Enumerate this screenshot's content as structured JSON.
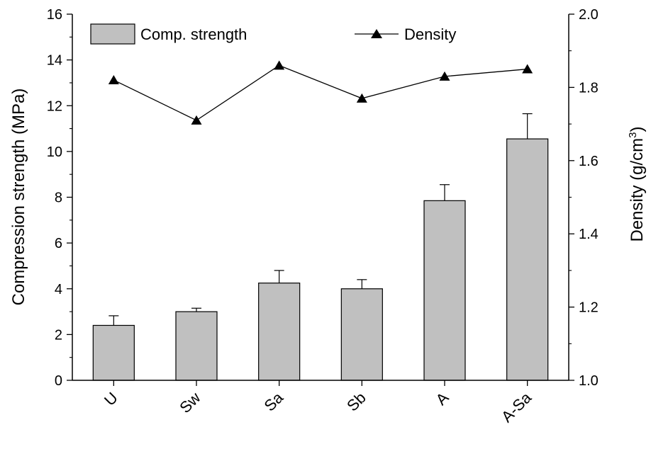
{
  "chart_data": {
    "type": "bar",
    "categories": [
      "U",
      "Sw",
      "Sa",
      "Sb",
      "A",
      "A-Sa"
    ],
    "series": [
      {
        "name": "Comp. strength",
        "type": "bar",
        "axis": "left",
        "values": [
          2.4,
          3.0,
          4.25,
          4.0,
          7.85,
          10.55
        ],
        "errors": [
          0.42,
          0.15,
          0.55,
          0.4,
          0.7,
          1.1
        ]
      },
      {
        "name": "Density",
        "type": "line",
        "marker": "triangle",
        "axis": "right",
        "values": [
          1.82,
          1.71,
          1.86,
          1.77,
          1.83,
          1.85
        ]
      }
    ],
    "ylabel": "Compression strength (MPa)",
    "y2label_main": "Density (g/cm",
    "y2label_sup": "3",
    "y2label_close": ")",
    "ylim": [
      0,
      16
    ],
    "y2lim": [
      1.0,
      2.0
    ],
    "yticks": [
      "0",
      "2",
      "4",
      "6",
      "8",
      "10",
      "12",
      "14",
      "16"
    ],
    "y2ticks": [
      "1.0",
      "1.2",
      "1.4",
      "1.6",
      "1.8",
      "2.0"
    ],
    "legend_position": "top",
    "colors": {
      "bar_fill": "#c0c0c0",
      "line": "#000000",
      "axis": "#000000"
    }
  }
}
